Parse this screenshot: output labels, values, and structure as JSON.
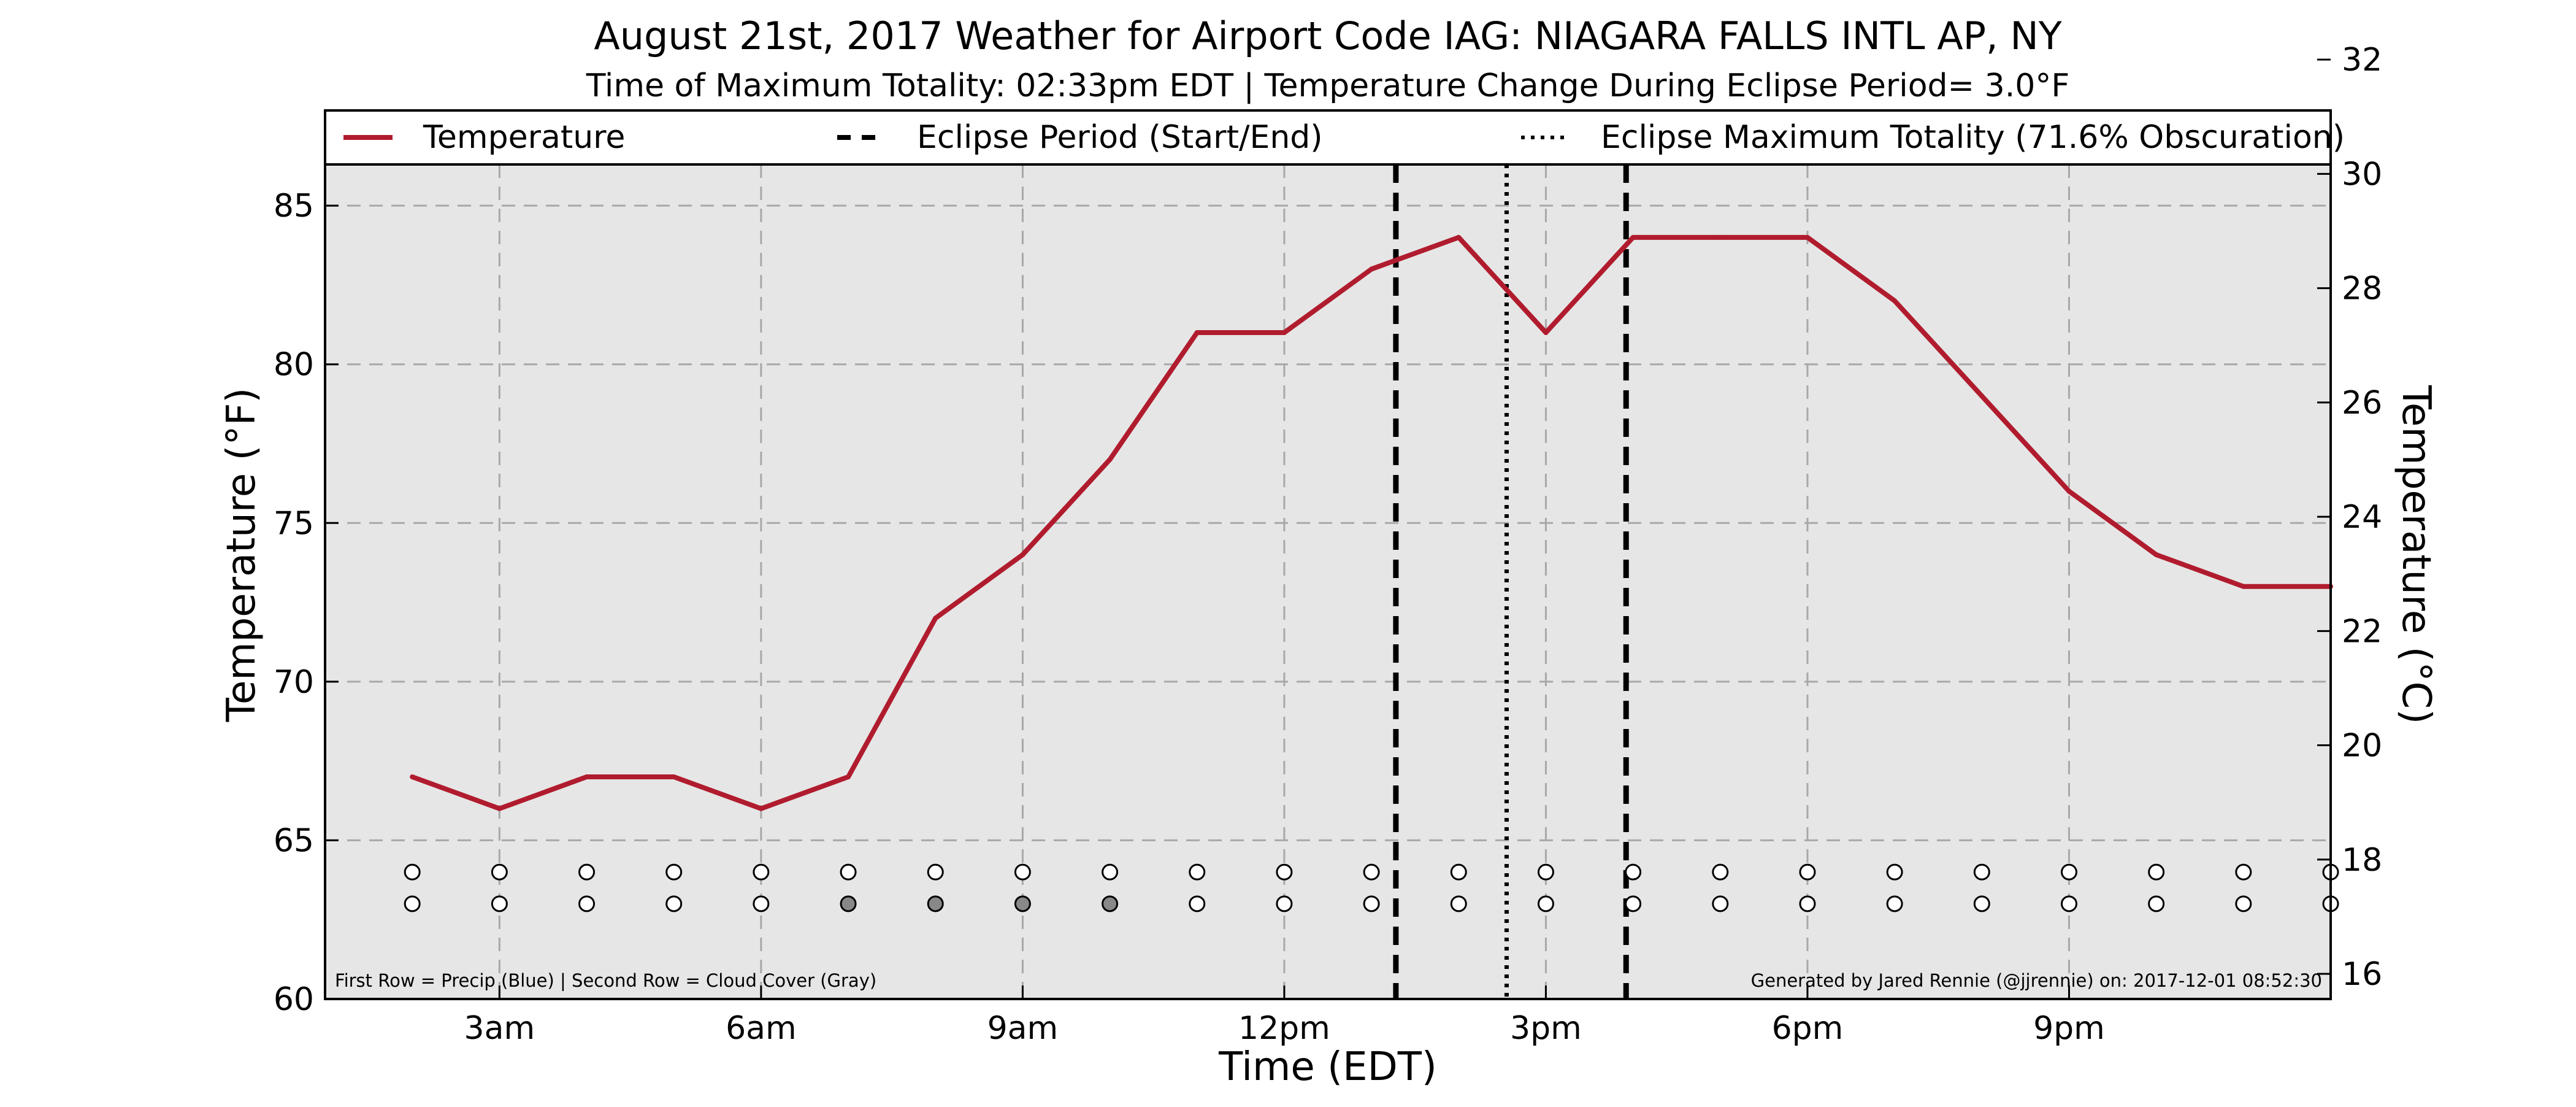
{
  "chart_data": {
    "type": "line",
    "title": "August 21st, 2017 Weather for Airport Code IAG: NIAGARA FALLS INTL AP, NY",
    "subtitle": "Time of Maximum Totality: 02:33pm EDT | Temperature Change During Eclipse Period= 3.0°F",
    "xlabel": "Time (EDT)",
    "ylabel_left": "Temperature (°F)",
    "ylabel_right": "Temperature (°C)",
    "xlim": [
      1,
      24
    ],
    "ylim": [
      60,
      88
    ],
    "y2lim": [
      15.56,
      31.11
    ],
    "grid": true,
    "legend_position": "top",
    "x_ticks": [
      {
        "value": 3,
        "label": "3am"
      },
      {
        "value": 6,
        "label": "6am"
      },
      {
        "value": 9,
        "label": "9am"
      },
      {
        "value": 12,
        "label": "12pm"
      },
      {
        "value": 15,
        "label": "3pm"
      },
      {
        "value": 18,
        "label": "6pm"
      },
      {
        "value": 21,
        "label": "9pm"
      }
    ],
    "y_ticks_left": [
      60,
      65,
      70,
      75,
      80,
      85
    ],
    "y_ticks_right": [
      16,
      18,
      20,
      22,
      24,
      26,
      28,
      30,
      32
    ],
    "legend": [
      {
        "label": "Temperature",
        "style": "solid",
        "color": "#b01c2e"
      },
      {
        "label": "Eclipse Period (Start/End)",
        "style": "dashed",
        "color": "#000000"
      },
      {
        "label": "Eclipse Maximum Totality (71.6% Obscuration)",
        "style": "dotted",
        "color": "#000000"
      }
    ],
    "series": [
      {
        "name": "Temperature",
        "color": "#b01c2e",
        "x": [
          2,
          3,
          4,
          5,
          6,
          7,
          8,
          9,
          10,
          11,
          12,
          13,
          14,
          15,
          16,
          17,
          18,
          19,
          20,
          21,
          22,
          23,
          24
        ],
        "values": [
          67,
          66,
          67,
          67,
          66,
          67,
          72,
          74,
          77,
          81,
          81,
          83,
          84,
          81,
          84,
          84,
          84,
          82,
          79,
          76,
          74,
          73,
          73
        ]
      }
    ],
    "eclipse_start": 13.28,
    "eclipse_end": 15.92,
    "eclipse_max": 14.55,
    "precip_row": {
      "y": 64,
      "x": [
        2,
        3,
        4,
        5,
        6,
        7,
        8,
        9,
        10,
        11,
        12,
        13,
        14,
        15,
        16,
        17,
        18,
        19,
        20,
        21,
        22,
        23,
        24
      ],
      "fill": [
        "#ffffff",
        "#ffffff",
        "#ffffff",
        "#ffffff",
        "#ffffff",
        "#ffffff",
        "#ffffff",
        "#ffffff",
        "#ffffff",
        "#ffffff",
        "#ffffff",
        "#ffffff",
        "#ffffff",
        "#ffffff",
        "#ffffff",
        "#ffffff",
        "#ffffff",
        "#ffffff",
        "#ffffff",
        "#ffffff",
        "#ffffff",
        "#ffffff",
        "#ffffff"
      ]
    },
    "cloud_row": {
      "y": 63,
      "x": [
        2,
        3,
        4,
        5,
        6,
        7,
        8,
        9,
        10,
        11,
        12,
        13,
        14,
        15,
        16,
        17,
        18,
        19,
        20,
        21,
        22,
        23,
        24
      ],
      "fill": [
        "#ffffff",
        "#ffffff",
        "#ffffff",
        "#ffffff",
        "#ffffff",
        "#888888",
        "#888888",
        "#888888",
        "#888888",
        "#ffffff",
        "#ffffff",
        "#ffffff",
        "#ffffff",
        "#ffffff",
        "#ffffff",
        "#ffffff",
        "#ffffff",
        "#ffffff",
        "#ffffff",
        "#ffffff",
        "#ffffff",
        "#ffffff",
        "#ffffff"
      ]
    },
    "footnote_left": "First Row = Precip (Blue) | Second Row = Cloud Cover (Gray)",
    "footnote_right": "Generated by Jared Rennie (@jjrennie) on: 2017-12-01 08:52:30"
  }
}
